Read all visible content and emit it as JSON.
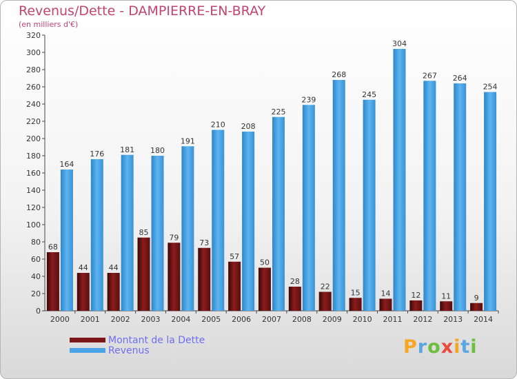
{
  "title": "Revenus/Dette - DAMPIERRE-EN-BRAY",
  "subtitle": "(en milliers d'€)",
  "legend": [
    {
      "label": "Montant de la Dette",
      "color": "#7a1616"
    },
    {
      "label": "Revenus",
      "color": "#4aa3e6"
    }
  ],
  "logo": {
    "letters": [
      {
        "ch": "P",
        "color": "#f5a623"
      },
      {
        "ch": "r",
        "color": "#5aa7e0"
      },
      {
        "ch": "o",
        "color": "#6cbf3c"
      },
      {
        "ch": "x",
        "color": "#e94b3c"
      },
      {
        "ch": "i",
        "color": "#f5a623"
      },
      {
        "ch": "t",
        "color": "#5aa7e0"
      },
      {
        "ch": "i",
        "color": "#6cbf3c"
      }
    ]
  },
  "chart_data": {
    "type": "bar",
    "title": "Revenus/Dette - DAMPIERRE-EN-BRAY",
    "subtitle": "(en milliers d'€)",
    "categories": [
      "2000",
      "2001",
      "2002",
      "2003",
      "2004",
      "2005",
      "2006",
      "2007",
      "2008",
      "2009",
      "2010",
      "2011",
      "2012",
      "2013",
      "2014"
    ],
    "series": [
      {
        "name": "Montant de la Dette",
        "color": "#7a1616",
        "values": [
          68,
          44,
          44,
          85,
          79,
          73,
          57,
          50,
          28,
          22,
          15,
          14,
          12,
          11,
          9
        ]
      },
      {
        "name": "Revenus",
        "color": "#4aa3e6",
        "values": [
          164,
          176,
          181,
          180,
          191,
          210,
          208,
          225,
          239,
          268,
          245,
          304,
          267,
          264,
          254
        ]
      }
    ],
    "ylim": [
      0,
      320
    ],
    "ytick_step": 20,
    "grid": false,
    "legend_position": "bottom-left"
  }
}
